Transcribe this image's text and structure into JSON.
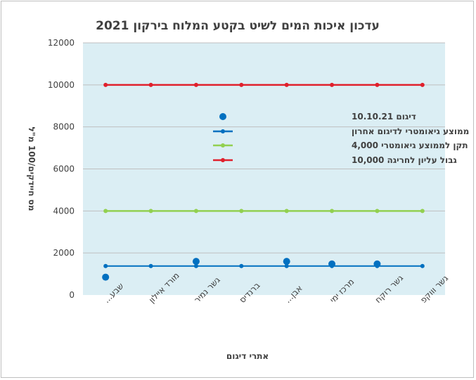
{
  "chart_data": {
    "type": "line",
    "title": "עדכון איכות המים לשיט בקטע המלוח בירקון 2021",
    "xlabel": "אתרי דיגום",
    "ylabel": "מס חיידקים/100 מ\"ל",
    "ylim": [
      0,
      12000
    ],
    "yticks": [
      0,
      2000,
      4000,
      6000,
      8000,
      10000,
      12000
    ],
    "ytick_labels": [
      "0",
      "2000",
      "4000",
      "6000",
      "8000",
      "10000",
      "12000"
    ],
    "categories": [
      "שבע...",
      "מורד איילון",
      "גשר נמיר",
      "ברנדיס",
      "אבן...",
      "מרכז ימי",
      "גשר רוקח",
      "גשר וווקפ"
    ],
    "grid": true,
    "legend_position": "center-left",
    "series": [
      {
        "name": "דיגום 10.10.21",
        "kind": "scatter",
        "color": "#0070c0",
        "values": [
          850,
          null,
          1600,
          null,
          1600,
          1480,
          1480,
          null
        ]
      },
      {
        "name": "ממוצע  גיאומטרי לדיגום אחרון",
        "kind": "line",
        "color": "#0070c0",
        "values": [
          1380,
          1380,
          1380,
          1380,
          1380,
          1380,
          1380,
          1380
        ]
      },
      {
        "name": "תקן לממוצע גיאומטרי 4,000",
        "kind": "line",
        "color": "#92d050",
        "values": [
          4000,
          4000,
          4000,
          4000,
          4000,
          4000,
          4000,
          4000
        ]
      },
      {
        "name": "גבול עליון לחריגה 10,000",
        "kind": "line",
        "color": "#e0202c",
        "values": [
          10000,
          10000,
          10000,
          10000,
          10000,
          10000,
          10000,
          10000
        ]
      }
    ]
  }
}
